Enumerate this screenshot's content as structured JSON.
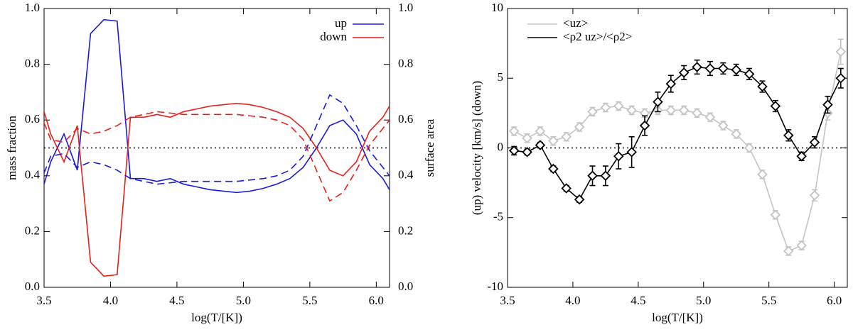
{
  "chart_data": [
    {
      "type": "line",
      "x": [
        3.5,
        3.55,
        3.65,
        3.75,
        3.85,
        3.95,
        4.05,
        4.15,
        4.25,
        4.35,
        4.45,
        4.55,
        4.65,
        4.75,
        4.85,
        4.95,
        5.05,
        5.15,
        5.25,
        5.35,
        5.45,
        5.55,
        5.65,
        5.75,
        5.85,
        5.95,
        6.05,
        6.1
      ],
      "xlabel": "log(T/[K])",
      "ylabel": "mass fraction",
      "y2label": "surface area",
      "xlim": [
        3.5,
        6.1
      ],
      "ylim": [
        0,
        1
      ],
      "y2lim": [
        0,
        1
      ],
      "xticks": [
        3.5,
        {
          "value": 4,
          "label": "4.0"
        },
        4.5,
        {
          "value": 5,
          "label": "5.0"
        },
        5.5,
        {
          "value": 6,
          "label": "6.0"
        }
      ],
      "yticks": [
        {
          "value": 0,
          "label": "0.0"
        },
        0.2,
        0.4,
        0.6,
        0.8,
        {
          "value": 1,
          "label": "1.0"
        }
      ],
      "y2ticks": [
        {
          "value": 0,
          "label": "0.0"
        },
        0.2,
        0.4,
        0.6,
        0.8,
        {
          "value": 1,
          "label": "1.0"
        }
      ],
      "reference_line": 0.5,
      "legend": "upper right",
      "series": [
        {
          "name": "up",
          "color": "#1a1adc",
          "values": [
            0.37,
            0.45,
            0.55,
            0.42,
            0.91,
            0.96,
            0.955,
            0.39,
            0.39,
            0.38,
            0.39,
            0.37,
            0.36,
            0.35,
            0.345,
            0.34,
            0.345,
            0.355,
            0.37,
            0.39,
            0.43,
            0.5,
            0.58,
            0.6,
            0.55,
            0.44,
            0.39,
            0.35
          ]
        },
        {
          "name": "down",
          "color": "#e8201a",
          "values": [
            0.63,
            0.55,
            0.45,
            0.58,
            0.09,
            0.04,
            0.045,
            0.61,
            0.61,
            0.62,
            0.61,
            0.63,
            0.64,
            0.65,
            0.655,
            0.66,
            0.655,
            0.645,
            0.63,
            0.61,
            0.57,
            0.5,
            0.42,
            0.4,
            0.45,
            0.56,
            0.61,
            0.65
          ]
        },
        {
          "color": "#1a1adc",
          "dashed": true,
          "axis": "y2",
          "values": [
            0.41,
            0.47,
            0.48,
            0.43,
            0.45,
            0.44,
            0.42,
            0.39,
            0.38,
            0.37,
            0.375,
            0.38,
            0.38,
            0.38,
            0.38,
            0.38,
            0.385,
            0.39,
            0.4,
            0.42,
            0.47,
            0.58,
            0.69,
            0.66,
            0.58,
            0.49,
            0.43,
            0.4
          ]
        },
        {
          "color": "#e8201a",
          "dashed": true,
          "axis": "y2",
          "values": [
            0.59,
            0.53,
            0.52,
            0.57,
            0.55,
            0.56,
            0.58,
            0.61,
            0.62,
            0.63,
            0.625,
            0.62,
            0.62,
            0.62,
            0.62,
            0.62,
            0.615,
            0.61,
            0.6,
            0.58,
            0.53,
            0.42,
            0.31,
            0.34,
            0.42,
            0.51,
            0.57,
            0.6
          ]
        }
      ]
    },
    {
      "type": "errorline",
      "x": [
        3.55,
        3.65,
        3.75,
        3.85,
        3.95,
        4.05,
        4.15,
        4.25,
        4.35,
        4.45,
        4.55,
        4.65,
        4.75,
        4.85,
        4.95,
        5.05,
        5.15,
        5.25,
        5.35,
        5.45,
        5.55,
        5.65,
        5.75,
        5.85,
        5.95,
        6.05
      ],
      "xlabel": "log(T/[K])",
      "ylabel": "(up) velocity [km/s] (down)",
      "xlim": [
        3.5,
        6.1
      ],
      "ylim": [
        -10,
        10
      ],
      "xticks": [
        3.5,
        {
          "value": 4,
          "label": "4.0"
        },
        4.5,
        {
          "value": 5,
          "label": "5.0"
        },
        5.5,
        {
          "value": 6,
          "label": "6.0"
        }
      ],
      "yticks": [
        -10,
        -5,
        0,
        5,
        10
      ],
      "reference_line": 0,
      "legend": "upper left",
      "series": [
        {
          "name": "<uz>",
          "color": "#c4c4c4",
          "values": [
            1.2,
            0.7,
            1.2,
            0.5,
            0.8,
            1.5,
            2.6,
            2.9,
            3.0,
            2.7,
            2.5,
            2.7,
            2.7,
            2.7,
            2.5,
            2.2,
            1.6,
            1.0,
            0.0,
            -1.9,
            -4.8,
            -7.4,
            -7.0,
            -3.4,
            2.5,
            6.9
          ],
          "errors": [
            0.3,
            0.3,
            0.3,
            0.3,
            0.3,
            0.3,
            0.3,
            0.3,
            0.3,
            0.3,
            0.3,
            0.3,
            0.3,
            0.3,
            0.3,
            0.3,
            0.3,
            0.3,
            0.3,
            0.3,
            0.3,
            0.3,
            0.3,
            0.4,
            0.5,
            0.9
          ]
        },
        {
          "name": "<ρ2 uz>/<ρ2>",
          "color": "#000000",
          "values": [
            -0.2,
            -0.3,
            0.2,
            -1.5,
            -2.9,
            -3.7,
            -2.0,
            -2.0,
            -0.6,
            -0.3,
            1.6,
            3.3,
            4.6,
            5.4,
            5.8,
            5.7,
            5.7,
            5.6,
            5.3,
            4.4,
            3.0,
            0.9,
            -0.6,
            0.4,
            3.1,
            5.0
          ],
          "errors": [
            0.3,
            0.2,
            0.2,
            0.2,
            0.2,
            0.2,
            0.7,
            0.7,
            0.9,
            1.1,
            0.7,
            0.7,
            0.6,
            0.5,
            0.5,
            0.5,
            0.4,
            0.4,
            0.4,
            0.4,
            0.4,
            0.4,
            0.3,
            0.4,
            0.6,
            0.7
          ]
        }
      ]
    }
  ]
}
